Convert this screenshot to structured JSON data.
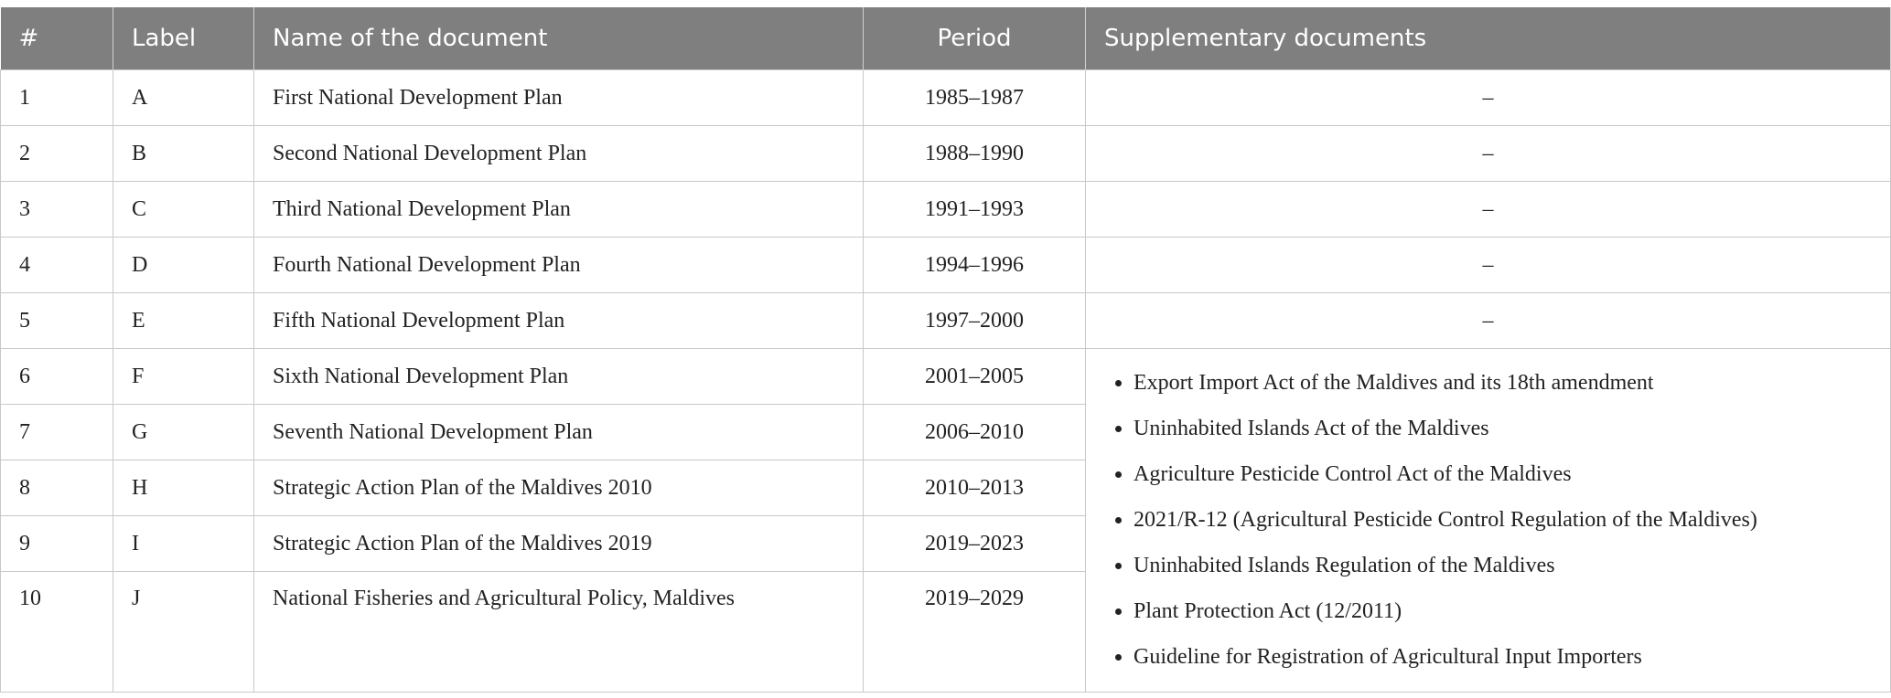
{
  "table": {
    "columns": [
      "#",
      "Label",
      "Name of the document",
      "Period",
      "Supplementary documents"
    ],
    "rows": [
      [
        "1",
        "A",
        "First National Development Plan",
        "1985–1987",
        "–"
      ],
      [
        "2",
        "B",
        "Second National Development Plan",
        "1988–1990",
        "–"
      ],
      [
        "3",
        "C",
        "Third National Development Plan",
        "1991–1993",
        "–"
      ],
      [
        "4",
        "D",
        "Fourth National Development Plan",
        "1994–1996",
        "–"
      ],
      [
        "5",
        "E",
        "Fifth National Development Plan",
        "1997–2000",
        "–"
      ],
      [
        "6",
        "F",
        "Sixth National Development Plan",
        "2001–2005",
        [
          "Export Import Act of the Maldives and its 18th amendment",
          "Uninhabited Islands Act of the Maldives",
          "Agriculture Pesticide Control Act of the Maldives",
          "2021/R-12 (Agricultural Pesticide Control Regulation of the Maldives)",
          "Uninhabited Islands Regulation of the Maldives",
          "Plant Protection Act (12/2011)",
          "Guideline for Registration of Agricultural Input Importers"
        ]
      ],
      [
        "7",
        "G",
        "Seventh National Development Plan",
        "2006–2010"
      ],
      [
        "8",
        "H",
        "Strategic Action Plan of the Maldives 2010",
        "2010–2013"
      ],
      [
        "9",
        "I",
        "Strategic Action Plan of the Maldives 2019",
        "2019–2023"
      ],
      [
        "10",
        "J",
        "National Fisheries and Agricultural Policy, Maldives",
        "2019–2029"
      ]
    ]
  }
}
